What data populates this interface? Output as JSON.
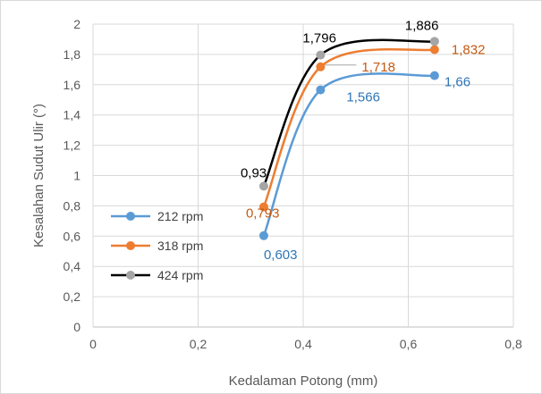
{
  "chart_data": {
    "type": "line",
    "title": "",
    "xlabel": "Kedalaman Potong (mm)",
    "ylabel": "Kesalahan Sudut Ulir (°)",
    "xlim": [
      0,
      0.8
    ],
    "ylim": [
      0,
      2
    ],
    "x_ticks": [
      "0",
      "0,2",
      "0,4",
      "0,6",
      "0,8"
    ],
    "y_ticks": [
      "0",
      "0,2",
      "0,4",
      "0,6",
      "0,8",
      "1",
      "1,2",
      "1,4",
      "1,6",
      "1,8",
      "2"
    ],
    "grid": true,
    "legend_position": "left-middle",
    "x": [
      0.325,
      0.433,
      0.65
    ],
    "series": [
      {
        "name": "212 rpm",
        "values": [
          0.603,
          1.566,
          1.66
        ],
        "labels": [
          "0,603",
          "1,566",
          "1,66"
        ],
        "line_color": "#5b9bd5",
        "marker_color": "#5b9bd5",
        "label_color": "#2e75b6"
      },
      {
        "name": "318 rpm",
        "values": [
          0.793,
          1.718,
          1.832
        ],
        "labels": [
          "0,793",
          "1,718",
          "1,832"
        ],
        "line_color": "#ed7d31",
        "marker_color": "#ed7d31",
        "label_color": "#c55a11"
      },
      {
        "name": "424 rpm",
        "values": [
          0.93,
          1.796,
          1.886
        ],
        "labels": [
          "0,93",
          "1,796",
          "1,886"
        ],
        "line_color": "#000000",
        "marker_color": "#a5a5a5",
        "label_color": "#000000"
      }
    ]
  }
}
